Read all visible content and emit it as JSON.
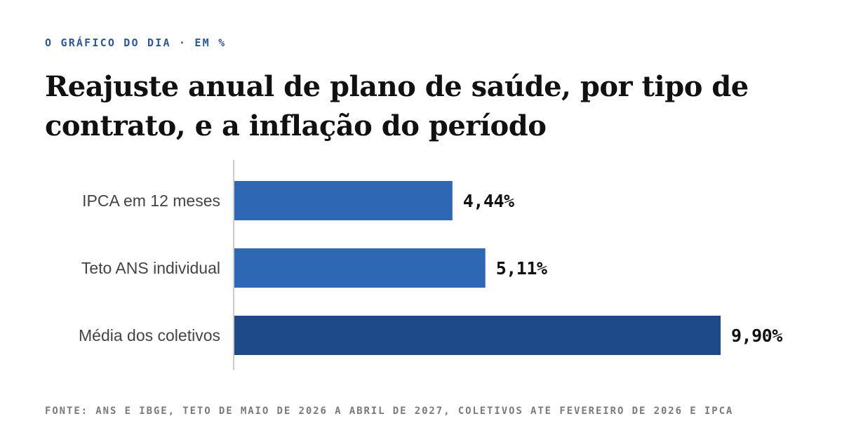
{
  "header": {
    "kicker": "O GRÁFICO DO DIA · EM %",
    "title": "Reajuste anual de plano de saúde, por tipo de contrato, e a inflação do período"
  },
  "chart_data": {
    "type": "bar",
    "orientation": "horizontal",
    "categories": [
      "IPCA em 12 meses",
      "Teto ANS individual",
      "Média dos coletivos"
    ],
    "values": [
      4.44,
      5.11,
      9.9
    ],
    "value_labels": [
      "4,44%",
      "5,11%",
      "9,90%"
    ],
    "highlighted": "Média dos coletivos",
    "xlim": [
      0,
      10
    ],
    "grid": false,
    "legend": "none"
  },
  "colors": {
    "bar": "#2e68b4",
    "bar_highlight": "#1e4a8a",
    "kicker": "#2c5898",
    "axis": "#bbbbbb",
    "source": "#7a7a7a"
  },
  "footer": {
    "source": "FONTE: ANS E IBGE, TETO DE MAIO DE 2026 A ABRIL DE 2027, COLETIVOS ATÉ FEVEREIRO DE 2026 E IPCA"
  }
}
